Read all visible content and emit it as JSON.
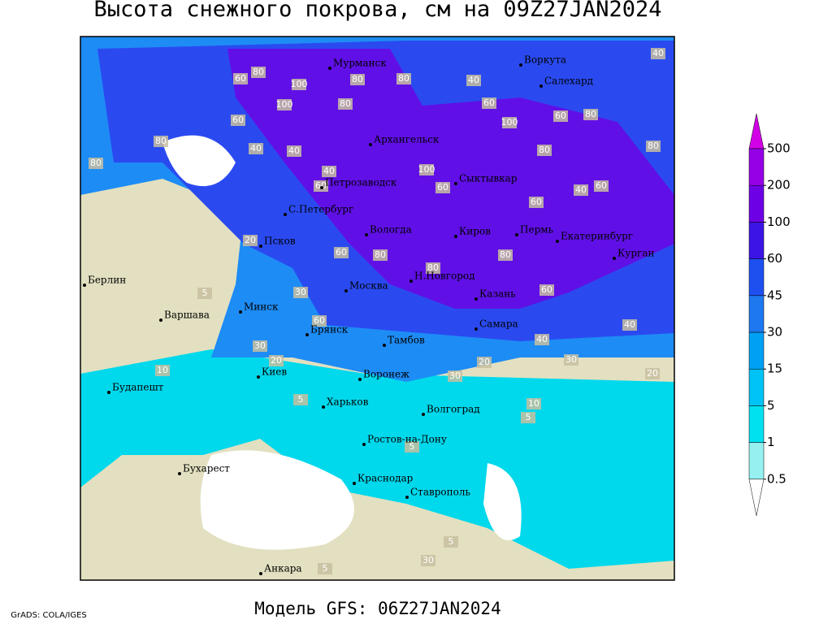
{
  "title": "Высота снежного покрова, см на 09Z27JAN2024",
  "model_label": "Модель GFS: 06Z27JAN2024",
  "credit": "GrADS: COLA/IGES",
  "colorbar": {
    "levels": [
      0.5,
      1,
      5,
      15,
      30,
      45,
      60,
      100,
      200,
      500
    ],
    "colors": [
      "#96f0f0",
      "#00e1f0",
      "#00c3f5",
      "#00a0f5",
      "#1e78f0",
      "#1e50f0",
      "#3c14e6",
      "#6e00e6",
      "#9600e6"
    ],
    "below_color": "#ffffff",
    "above_color": "#d200e6"
  },
  "cities": [
    "Мурманск",
    "Воркута",
    "Салехард",
    "Архангельск",
    "Сыктывкар",
    "Петрозаводск",
    "С.Петербург",
    "Вологда",
    "Киров",
    "Пермь",
    "Екатеринбург",
    "Курган",
    "Псков",
    "Н.Новгород",
    "Казань",
    "Москва",
    "Минск",
    "Берлин",
    "Варшава",
    "Брянск",
    "Тамбов",
    "Самара",
    "Киев",
    "Воронеж",
    "Будапешт",
    "Харьков",
    "Волгоград",
    "Ростов-на-Дону",
    "Бухарест",
    "Краснодар",
    "Ставрополь",
    "Анкара"
  ],
  "contour_labels": [
    60,
    80,
    100,
    100,
    80,
    60,
    80,
    80,
    40,
    40,
    40,
    60,
    80,
    80,
    60,
    100,
    80,
    60,
    80,
    100,
    60,
    60,
    40,
    60,
    80,
    40,
    40,
    20,
    60,
    80,
    80,
    80,
    60,
    30,
    60,
    30,
    40,
    40,
    20,
    10,
    5,
    10,
    5,
    30,
    20,
    30,
    20,
    5,
    5,
    5,
    5,
    30
  ]
}
